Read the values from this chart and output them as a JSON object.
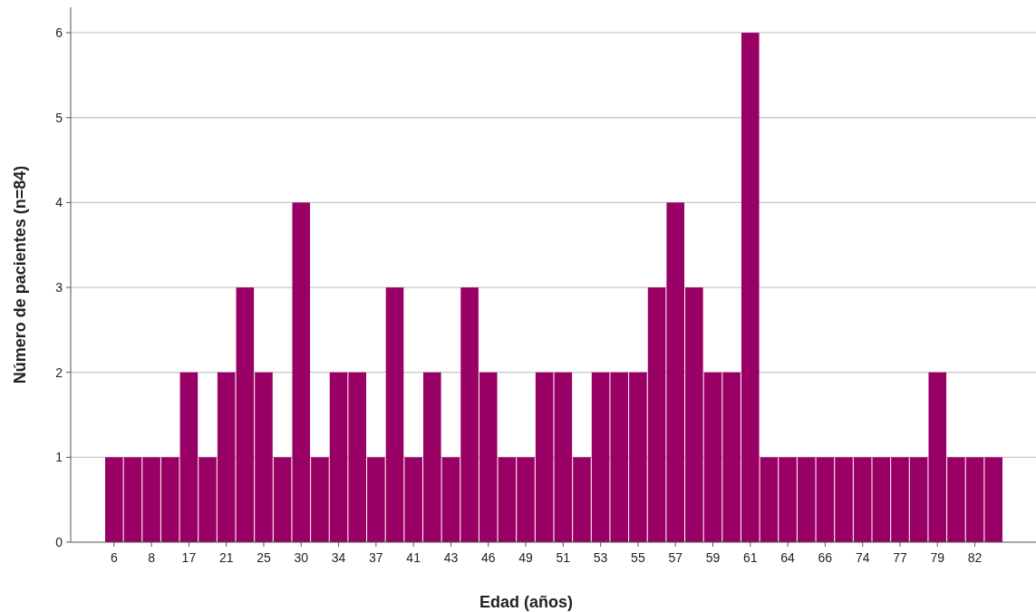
{
  "chart_data": {
    "type": "bar",
    "xlabel": "Edad (años)",
    "ylabel": "Número de pacientes (n=84)",
    "categories": [
      "6",
      null,
      "8",
      null,
      "17",
      null,
      "21",
      null,
      "25",
      null,
      "30",
      null,
      "34",
      null,
      "37",
      null,
      "41",
      null,
      "43",
      null,
      "46",
      null,
      "49",
      null,
      "51",
      null,
      "53",
      null,
      "55",
      null,
      "57",
      null,
      "59",
      null,
      "61",
      null,
      "64",
      null,
      "66",
      null,
      "74",
      null,
      "77",
      null,
      "79",
      null,
      "82",
      null
    ],
    "values": [
      1,
      1,
      1,
      1,
      2,
      1,
      2,
      3,
      2,
      1,
      4,
      1,
      2,
      2,
      1,
      3,
      1,
      2,
      1,
      3,
      2,
      1,
      1,
      2,
      2,
      1,
      2,
      2,
      2,
      3,
      4,
      3,
      2,
      2,
      6,
      1,
      1,
      1,
      1,
      1,
      1,
      1,
      1,
      1,
      2,
      1,
      1,
      1
    ],
    "color": "#990066",
    "ylim": [
      0,
      6.3
    ],
    "yticks": [
      0,
      1,
      2,
      3,
      4,
      5,
      6
    ],
    "grid": "y"
  }
}
